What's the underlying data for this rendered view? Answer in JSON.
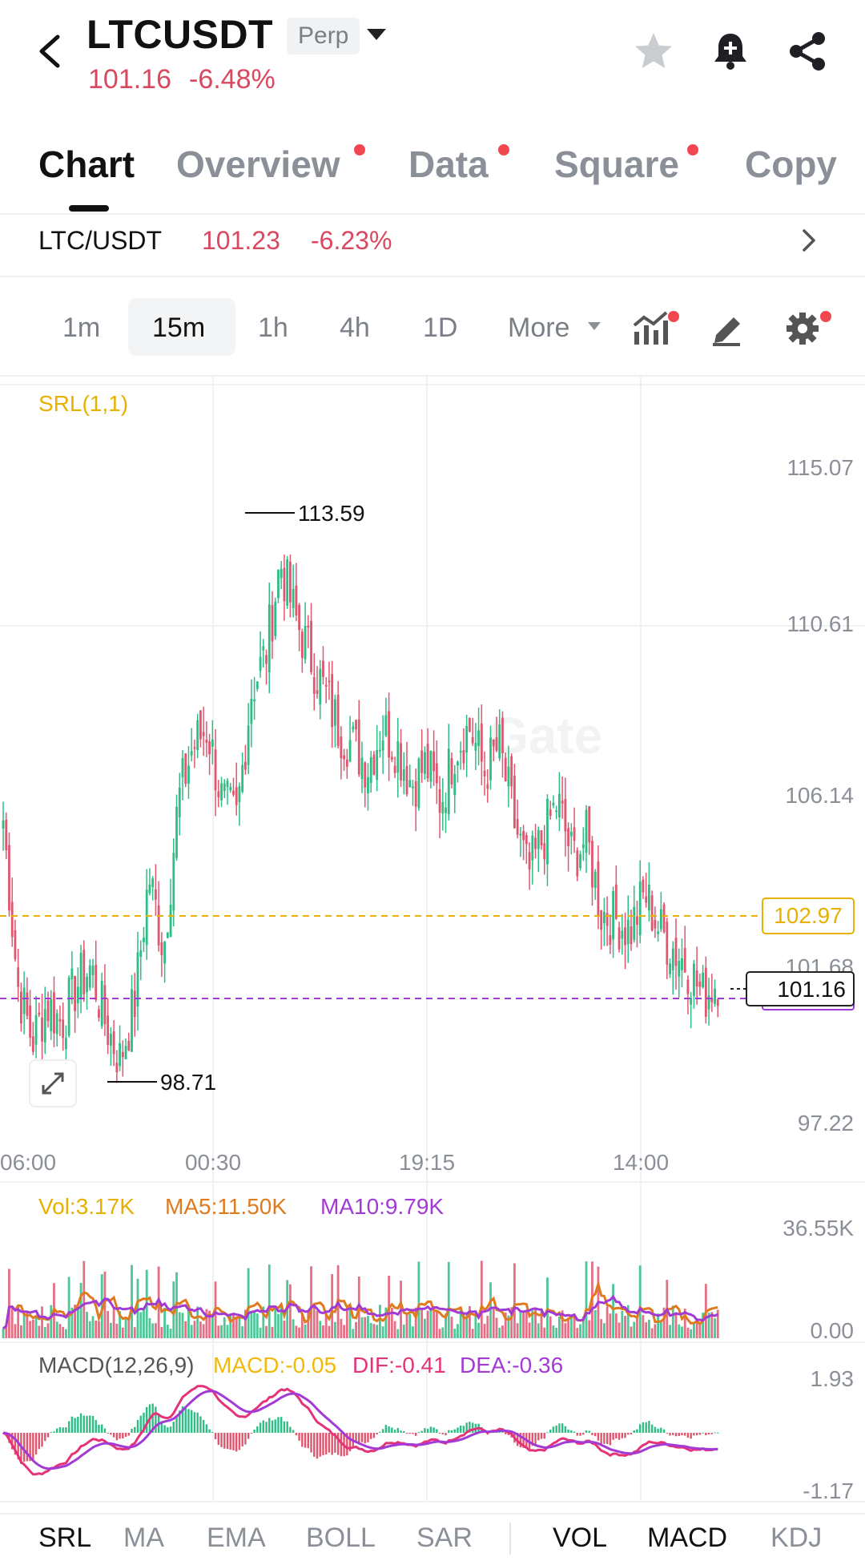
{
  "header": {
    "symbol": "LTCUSDT",
    "badge": "Perp",
    "price": "101.16",
    "change": "-6.48%",
    "icons": [
      "back-icon",
      "star-icon",
      "bell-icon",
      "share-icon"
    ]
  },
  "tabs": [
    {
      "label": "Chart",
      "active": true,
      "dot": false
    },
    {
      "label": "Overview",
      "active": false,
      "dot": true
    },
    {
      "label": "Data",
      "active": false,
      "dot": true
    },
    {
      "label": "Square",
      "active": false,
      "dot": true
    },
    {
      "label": "Copy",
      "active": false,
      "dot": false
    }
  ],
  "ticker": {
    "pair": "LTC/USDT",
    "price": "101.23",
    "change": "-6.23%"
  },
  "intervals": [
    "1m",
    "15m",
    "1h",
    "4h",
    "1D",
    "More"
  ],
  "active_interval": "15m",
  "indicator_label": "SRL(1,1)",
  "colors": {
    "up": "#2ebd85",
    "down": "#e0566e",
    "accent_red": "#d9485f",
    "yellow": "#e8b000",
    "purple": "#a23ad6",
    "macd_yellow": "#f0b90b",
    "dif_pink": "#e5337a"
  },
  "chart_data": {
    "type": "candlestick",
    "price_axis_ticks": [
      "115.07",
      "110.61",
      "106.14",
      "101.68",
      "97.22"
    ],
    "time_axis_ticks": [
      "06:00",
      "00:30",
      "19:15",
      "14:00"
    ],
    "high_marker": "113.59",
    "low_marker": "98.71",
    "yellow_line": "102.97",
    "last_price": "101.16",
    "ylim": [
      97.22,
      115.07
    ],
    "close_path": [
      105.5,
      101,
      99.5,
      100.5,
      100,
      101,
      101.5,
      100,
      99,
      100.5,
      104,
      102,
      106,
      107.5,
      108,
      106,
      105.5,
      109,
      110,
      112.5,
      111,
      110,
      109,
      108,
      107.5,
      107,
      108,
      107.5,
      106.5,
      107,
      106,
      107.5,
      108,
      106.8,
      107.5,
      105.5,
      104,
      105,
      106,
      104.5,
      105,
      103,
      102.8,
      102.5,
      103.5,
      102.5,
      102,
      101.5,
      100.7,
      101.2
    ],
    "volume": {
      "labels": {
        "vol": "Vol:3.17K",
        "ma5": "MA5:11.50K",
        "ma10": "MA10:9.79K"
      },
      "axis": [
        "36.55K",
        "0.00"
      ]
    },
    "macd": {
      "labels": {
        "title": "MACD(12,26,9)",
        "macd": "MACD:-0.05",
        "dif": "DIF:-0.41",
        "dea": "DEA:-0.36"
      },
      "axis": [
        "1.93",
        "-1.17"
      ]
    }
  },
  "bottom_indicators": {
    "main": [
      "SRL",
      "MA",
      "EMA",
      "BOLL",
      "SAR"
    ],
    "sub": [
      "VOL",
      "MACD",
      "KDJ"
    ],
    "active_main": "SRL",
    "active_sub": [
      "VOL",
      "MACD"
    ]
  }
}
